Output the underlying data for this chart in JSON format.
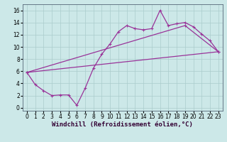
{
  "xlabel": "Windchill (Refroidissement éolien,°C)",
  "background_color": "#cce8e8",
  "grid_color": "#aacccc",
  "line_color": "#993399",
  "xlim": [
    -0.5,
    23.5
  ],
  "ylim": [
    -0.5,
    17
  ],
  "xticks": [
    0,
    1,
    2,
    3,
    4,
    5,
    6,
    7,
    8,
    9,
    10,
    11,
    12,
    13,
    14,
    15,
    16,
    17,
    18,
    19,
    20,
    21,
    22,
    23
  ],
  "yticks": [
    0,
    2,
    4,
    6,
    8,
    10,
    12,
    14,
    16
  ],
  "zigzag_x": [
    0,
    1,
    2,
    3,
    4,
    5,
    6,
    7,
    8,
    9,
    10,
    11,
    12,
    13,
    14,
    15,
    16,
    17,
    18,
    19,
    20,
    21,
    22,
    23
  ],
  "zigzag_y": [
    5.8,
    3.8,
    2.8,
    2.0,
    2.1,
    2.1,
    0.4,
    3.2,
    6.5,
    8.8,
    10.5,
    12.5,
    13.5,
    13.0,
    12.8,
    13.0,
    16.0,
    13.5,
    13.8,
    14.0,
    13.3,
    12.1,
    11.0,
    9.2
  ],
  "lower_line_x": [
    0,
    23
  ],
  "lower_line_y": [
    5.8,
    9.2
  ],
  "upper_line_x": [
    0,
    19,
    23
  ],
  "upper_line_y": [
    5.8,
    13.5,
    9.2
  ],
  "font_size": 6.5,
  "tick_font_size": 5.5
}
